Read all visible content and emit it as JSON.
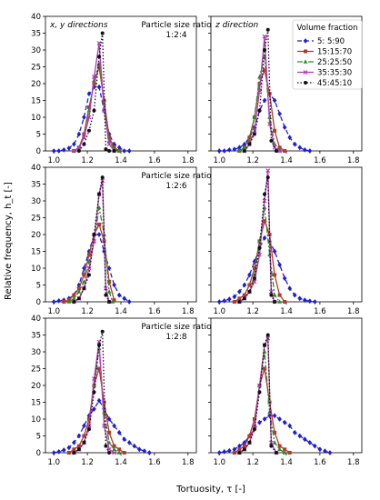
{
  "figure": {
    "ylabel": "Relative frequency, h_t [-]",
    "xlabel": "Tortuosity, τ [-]"
  },
  "legend": {
    "title": "Volume fraction",
    "entries": [
      "5:  5:90",
      "15:15:70",
      "25:25:50",
      "35:35:30",
      "45:45:10"
    ]
  },
  "series_styles": [
    {
      "color": "#1f1fcc",
      "dash": "5,3",
      "marker": "diamond"
    },
    {
      "color": "#b03a2e",
      "dash": "",
      "marker": "square"
    },
    {
      "color": "#2e8b22",
      "dash": "6,2,2,2",
      "marker": "triangle"
    },
    {
      "color": "#b23ab8",
      "dash": "",
      "marker": "x"
    },
    {
      "color": "#111111",
      "dash": "1.5,2",
      "marker": "circle"
    }
  ],
  "chart_data": [
    {
      "type": "line",
      "row": 0,
      "col": 0,
      "panel_title": "x, y directions",
      "annotation": [
        "Particle size ratio",
        "1:2:4"
      ],
      "xlim": [
        0.95,
        1.85
      ],
      "ylim": [
        0,
        40
      ],
      "xticks": [
        "1.0",
        "1.2",
        "1.4",
        "1.6",
        "1.8"
      ],
      "yticks": [
        "0",
        "5",
        "10",
        "15",
        "20",
        "25",
        "30",
        "35",
        "40"
      ],
      "series": [
        {
          "name": "5:  5:90",
          "x": [
            1.0,
            1.03,
            1.06,
            1.09,
            1.12,
            1.15,
            1.18,
            1.21,
            1.24,
            1.27,
            1.3,
            1.33,
            1.36,
            1.39,
            1.42,
            1.45
          ],
          "y": [
            0,
            0,
            0.3,
            0.8,
            2,
            5,
            10,
            17,
            19,
            19,
            12,
            5,
            2,
            1,
            0,
            0
          ]
        },
        {
          "name": "15:15:70",
          "x": [
            1.12,
            1.15,
            1.18,
            1.21,
            1.24,
            1.27,
            1.3,
            1.33,
            1.36,
            1.39
          ],
          "y": [
            0,
            1,
            5,
            13,
            20,
            25,
            15,
            4,
            1,
            0
          ]
        },
        {
          "name": "25:25:50",
          "x": [
            1.12,
            1.15,
            1.18,
            1.21,
            1.24,
            1.27,
            1.3,
            1.33,
            1.36,
            1.39
          ],
          "y": [
            0,
            1,
            4,
            12,
            21,
            26,
            14,
            3,
            0.5,
            0
          ]
        },
        {
          "name": "35:35:30",
          "x": [
            1.12,
            1.15,
            1.18,
            1.21,
            1.24,
            1.27,
            1.3,
            1.33,
            1.36
          ],
          "y": [
            0,
            1,
            4,
            10,
            22,
            32,
            12,
            2,
            0
          ]
        },
        {
          "name": "45:45:10",
          "x": [
            1.15,
            1.18,
            1.21,
            1.24,
            1.27,
            1.29,
            1.31,
            1.33,
            1.36
          ],
          "y": [
            0,
            2,
            6,
            12,
            28,
            35,
            0.5,
            0,
            0
          ]
        }
      ]
    },
    {
      "type": "line",
      "row": 0,
      "col": 1,
      "panel_title": "z direction",
      "xlim": [
        0.95,
        1.85
      ],
      "ylim": [
        0,
        40
      ],
      "xticks": [
        "1.0",
        "1.2",
        "1.4",
        "1.6",
        "1.8"
      ],
      "series": [
        {
          "name": "5:  5:90",
          "x": [
            1.0,
            1.03,
            1.06,
            1.09,
            1.12,
            1.15,
            1.18,
            1.21,
            1.24,
            1.27,
            1.3,
            1.33,
            1.36,
            1.39,
            1.42,
            1.45,
            1.48,
            1.51,
            1.54
          ],
          "y": [
            0,
            0,
            0.3,
            0.5,
            1,
            2,
            4,
            7,
            12,
            15,
            17,
            15,
            11,
            7,
            4,
            2,
            1,
            0.3,
            0
          ]
        },
        {
          "name": "15:15:70",
          "x": [
            1.12,
            1.15,
            1.18,
            1.21,
            1.24,
            1.27,
            1.3,
            1.33,
            1.36,
            1.39
          ],
          "y": [
            0,
            1,
            4,
            10,
            20,
            24,
            17,
            6,
            1,
            0
          ]
        },
        {
          "name": "25:25:50",
          "x": [
            1.12,
            1.15,
            1.18,
            1.21,
            1.24,
            1.27,
            1.3,
            1.33,
            1.36
          ],
          "y": [
            0,
            1,
            3,
            10,
            22,
            28,
            10,
            2,
            0
          ]
        },
        {
          "name": "35:35:30",
          "x": [
            1.15,
            1.18,
            1.21,
            1.24,
            1.27,
            1.3,
            1.33,
            1.36
          ],
          "y": [
            0,
            2,
            6,
            18,
            34,
            8,
            1,
            0
          ]
        },
        {
          "name": "45:45:10",
          "x": [
            1.15,
            1.18,
            1.21,
            1.24,
            1.27,
            1.29,
            1.31,
            1.34
          ],
          "y": [
            0,
            2,
            5,
            12,
            30,
            36,
            3,
            0
          ]
        }
      ]
    },
    {
      "type": "line",
      "row": 1,
      "col": 0,
      "annotation": [
        "Particle size ratio",
        "1:2:6"
      ],
      "xlim": [
        0.95,
        1.85
      ],
      "ylim": [
        0,
        40
      ],
      "xticks": [
        "1.0",
        "1.2",
        "1.4",
        "1.6",
        "1.8"
      ],
      "yticks": [
        "0",
        "5",
        "10",
        "15",
        "20",
        "25",
        "30",
        "35",
        "40"
      ],
      "series": [
        {
          "name": "5:  5:90",
          "x": [
            1.0,
            1.03,
            1.06,
            1.09,
            1.12,
            1.15,
            1.18,
            1.21,
            1.24,
            1.27,
            1.3,
            1.33,
            1.36,
            1.39,
            1.42,
            1.45
          ],
          "y": [
            0,
            0.3,
            0.5,
            1,
            2,
            5,
            10,
            15,
            20,
            20,
            15,
            10,
            5,
            2,
            1,
            0
          ]
        },
        {
          "name": "15:15:70",
          "x": [
            1.06,
            1.09,
            1.12,
            1.15,
            1.18,
            1.21,
            1.24,
            1.27,
            1.3,
            1.33,
            1.36
          ],
          "y": [
            0,
            0.5,
            2,
            4,
            8,
            14,
            20,
            23,
            18,
            6,
            0.5
          ]
        },
        {
          "name": "25:25:50",
          "x": [
            1.09,
            1.12,
            1.15,
            1.18,
            1.21,
            1.24,
            1.27,
            1.3,
            1.33,
            1.35
          ],
          "y": [
            0,
            1,
            3,
            6,
            12,
            18,
            28,
            20,
            3,
            0
          ]
        },
        {
          "name": "35:35:30",
          "x": [
            1.12,
            1.15,
            1.18,
            1.21,
            1.24,
            1.27,
            1.29,
            1.31,
            1.33
          ],
          "y": [
            0,
            1,
            4,
            10,
            18,
            32,
            36,
            4,
            0
          ]
        },
        {
          "name": "45:45:10",
          "x": [
            1.12,
            1.15,
            1.18,
            1.21,
            1.24,
            1.27,
            1.29,
            1.31,
            1.33
          ],
          "y": [
            0,
            1,
            4,
            8,
            20,
            32,
            37,
            2,
            0
          ]
        }
      ]
    },
    {
      "type": "line",
      "row": 1,
      "col": 1,
      "xlim": [
        0.95,
        1.85
      ],
      "ylim": [
        0,
        40
      ],
      "xticks": [
        "1.0",
        "1.2",
        "1.4",
        "1.6",
        "1.8"
      ],
      "series": [
        {
          "name": "5:  5:90",
          "x": [
            1.0,
            1.03,
            1.06,
            1.09,
            1.12,
            1.15,
            1.18,
            1.21,
            1.24,
            1.27,
            1.3,
            1.33,
            1.36,
            1.39,
            1.42,
            1.45,
            1.48,
            1.51,
            1.54,
            1.57
          ],
          "y": [
            0,
            0.3,
            0.8,
            1.5,
            3,
            5,
            8,
            12,
            16,
            19,
            18,
            15,
            11,
            7,
            4,
            2,
            1,
            0.5,
            0.2,
            0
          ]
        },
        {
          "name": "15:15:70",
          "x": [
            1.09,
            1.12,
            1.15,
            1.18,
            1.21,
            1.24,
            1.27,
            1.3,
            1.33,
            1.36,
            1.39
          ],
          "y": [
            0,
            1,
            2,
            5,
            10,
            18,
            24,
            20,
            8,
            2,
            0
          ]
        },
        {
          "name": "25:25:50",
          "x": [
            1.12,
            1.15,
            1.18,
            1.21,
            1.24,
            1.27,
            1.3,
            1.33,
            1.36
          ],
          "y": [
            0,
            1,
            3,
            8,
            18,
            28,
            14,
            2,
            0
          ]
        },
        {
          "name": "35:35:30",
          "x": [
            1.12,
            1.15,
            1.18,
            1.21,
            1.24,
            1.27,
            1.29,
            1.31,
            1.33
          ],
          "y": [
            0,
            1,
            3,
            6,
            14,
            30,
            39,
            3,
            0
          ]
        },
        {
          "name": "45:45:10",
          "x": [
            1.12,
            1.15,
            1.18,
            1.21,
            1.24,
            1.27,
            1.29,
            1.31,
            1.33
          ],
          "y": [
            0,
            1,
            3,
            7,
            16,
            32,
            37,
            2,
            0
          ]
        }
      ]
    },
    {
      "type": "line",
      "row": 2,
      "col": 0,
      "annotation": [
        "Particle size ratio",
        "1:2:8"
      ],
      "xlim": [
        0.95,
        1.85
      ],
      "ylim": [
        0,
        40
      ],
      "xticks": [
        "1.0",
        "1.2",
        "1.4",
        "1.6",
        "1.8"
      ],
      "yticks": [
        "0",
        "5",
        "10",
        "15",
        "20",
        "25",
        "30",
        "35",
        "40"
      ],
      "series": [
        {
          "name": "5:  5:90",
          "x": [
            1.0,
            1.03,
            1.06,
            1.09,
            1.12,
            1.15,
            1.18,
            1.21,
            1.24,
            1.27,
            1.3,
            1.33,
            1.36,
            1.39,
            1.42,
            1.45,
            1.48,
            1.51,
            1.54,
            1.57
          ],
          "y": [
            0,
            0.3,
            0.8,
            1.5,
            3,
            5,
            8,
            11,
            13,
            15.5,
            13,
            10,
            8,
            6,
            4,
            3,
            2,
            1,
            0.5,
            0
          ]
        },
        {
          "name": "15:15:70",
          "x": [
            1.09,
            1.12,
            1.15,
            1.18,
            1.21,
            1.24,
            1.27,
            1.3,
            1.33,
            1.36,
            1.39,
            1.42
          ],
          "y": [
            0,
            1,
            2,
            5,
            10,
            20,
            25,
            15,
            6,
            2,
            1,
            0
          ]
        },
        {
          "name": "25:25:50",
          "x": [
            1.12,
            1.15,
            1.18,
            1.21,
            1.24,
            1.27,
            1.3,
            1.33,
            1.36,
            1.39
          ],
          "y": [
            0,
            1,
            3,
            8,
            20,
            31,
            12,
            3,
            1,
            0
          ]
        },
        {
          "name": "35:35:30",
          "x": [
            1.12,
            1.15,
            1.18,
            1.21,
            1.24,
            1.27,
            1.3,
            1.33,
            1.36
          ],
          "y": [
            0,
            1,
            3,
            8,
            22,
            33,
            8,
            1,
            0
          ]
        },
        {
          "name": "45:45:10",
          "x": [
            1.12,
            1.15,
            1.18,
            1.21,
            1.24,
            1.27,
            1.29,
            1.31,
            1.33
          ],
          "y": [
            0,
            1,
            3,
            7,
            18,
            32,
            36,
            2,
            0
          ]
        }
      ]
    },
    {
      "type": "line",
      "row": 2,
      "col": 1,
      "xlim": [
        0.95,
        1.85
      ],
      "ylim": [
        0,
        40
      ],
      "xticks": [
        "1.0",
        "1.2",
        "1.4",
        "1.6",
        "1.8"
      ],
      "series": [
        {
          "name": "5:  5:90",
          "x": [
            1.0,
            1.03,
            1.06,
            1.09,
            1.12,
            1.15,
            1.18,
            1.21,
            1.24,
            1.27,
            1.3,
            1.33,
            1.36,
            1.39,
            1.42,
            1.45,
            1.48,
            1.51,
            1.54,
            1.57,
            1.6,
            1.63,
            1.66
          ],
          "y": [
            0,
            0.3,
            0.6,
            1,
            2,
            3,
            5,
            7,
            9,
            10,
            11,
            11,
            10,
            9,
            8,
            6,
            5,
            4,
            3,
            2,
            1,
            0.5,
            0
          ]
        },
        {
          "name": "15:15:70",
          "x": [
            1.09,
            1.12,
            1.15,
            1.18,
            1.21,
            1.24,
            1.27,
            1.3,
            1.33,
            1.36,
            1.39,
            1.42
          ],
          "y": [
            0,
            1,
            2,
            5,
            10,
            20,
            25,
            15,
            6,
            2,
            1,
            0
          ]
        },
        {
          "name": "25:25:50",
          "x": [
            1.12,
            1.15,
            1.18,
            1.21,
            1.24,
            1.27,
            1.3,
            1.33,
            1.36,
            1.39
          ],
          "y": [
            0,
            1,
            3,
            8,
            20,
            30,
            12,
            3,
            1,
            0
          ]
        },
        {
          "name": "35:35:30",
          "x": [
            1.12,
            1.15,
            1.18,
            1.21,
            1.24,
            1.27,
            1.29,
            1.31,
            1.34
          ],
          "y": [
            0,
            1,
            3,
            8,
            20,
            32,
            34,
            3,
            0
          ]
        },
        {
          "name": "45:45:10",
          "x": [
            1.12,
            1.15,
            1.18,
            1.21,
            1.24,
            1.27,
            1.29,
            1.31,
            1.34
          ],
          "y": [
            0,
            1,
            3,
            7,
            18,
            32,
            35,
            2,
            0
          ]
        }
      ]
    }
  ]
}
